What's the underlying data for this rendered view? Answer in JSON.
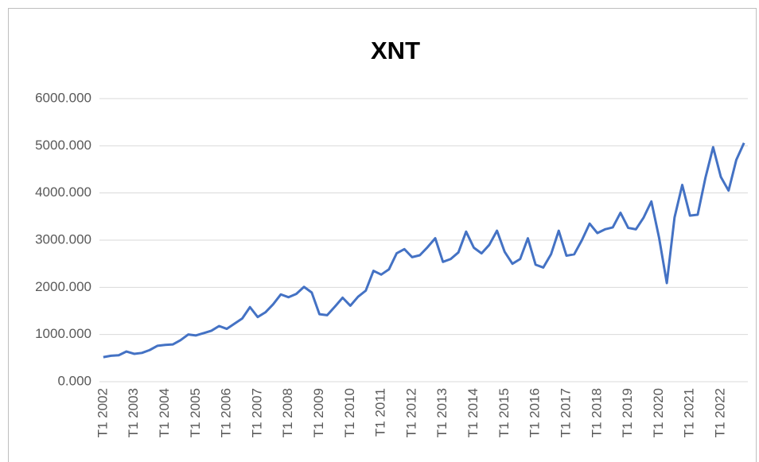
{
  "chart_data": {
    "type": "line",
    "title": "XNT",
    "categories": [
      "T1 2002",
      null,
      null,
      null,
      "T1 2003",
      null,
      null,
      null,
      "T1 2004",
      null,
      null,
      null,
      "T1 2005",
      null,
      null,
      null,
      "T1 2006",
      null,
      null,
      null,
      "T1 2007",
      null,
      null,
      null,
      "T1 2008",
      null,
      null,
      null,
      "T1 2009",
      null,
      null,
      null,
      "T1 2010",
      null,
      null,
      null,
      "T1 2011",
      null,
      null,
      null,
      "T1 2012",
      null,
      null,
      null,
      "T1 2013",
      null,
      null,
      null,
      "T1 2014",
      null,
      null,
      null,
      "T1 2015",
      null,
      null,
      null,
      "T1 2016",
      null,
      null,
      null,
      "T1 2017",
      null,
      null,
      null,
      "T1 2018",
      null,
      null,
      null,
      "T1 2019",
      null,
      null,
      null,
      "T1 2020",
      null,
      null,
      null,
      "T1 2021",
      null,
      null,
      null,
      "T1 2022",
      null,
      null,
      null
    ],
    "series": [
      {
        "color": "#4472c4",
        "values": [
          520,
          550,
          560,
          640,
          590,
          610,
          670,
          760,
          780,
          790,
          880,
          1000,
          980,
          1030,
          1080,
          1180,
          1120,
          1230,
          1340,
          1580,
          1370,
          1470,
          1640,
          1850,
          1790,
          1860,
          2010,
          1890,
          1430,
          1410,
          1590,
          1780,
          1610,
          1800,
          1930,
          2350,
          2270,
          2380,
          2720,
          2810,
          2640,
          2680,
          2850,
          3040,
          2540,
          2600,
          2740,
          3180,
          2840,
          2720,
          2900,
          3200,
          2750,
          2500,
          2600,
          3040,
          2480,
          2420,
          2700,
          3200,
          2670,
          2700,
          3000,
          3350,
          3150,
          3230,
          3270,
          3580,
          3260,
          3230,
          3480,
          3820,
          3050,
          2090,
          3480,
          4170,
          3520,
          3540,
          4320,
          4970,
          4340,
          4050,
          4700,
          5060
        ]
      }
    ],
    "ylim": [
      0,
      6000
    ],
    "yticks": [
      {
        "value": 0,
        "label": "0.000"
      },
      {
        "value": 1000,
        "label": "1000.000"
      },
      {
        "value": 2000,
        "label": "2000.000"
      },
      {
        "value": 3000,
        "label": "3000.000"
      },
      {
        "value": 4000,
        "label": "4000.000"
      },
      {
        "value": 5000,
        "label": "5000.000"
      },
      {
        "value": 6000,
        "label": "6000.000"
      }
    ],
    "grid": true
  }
}
